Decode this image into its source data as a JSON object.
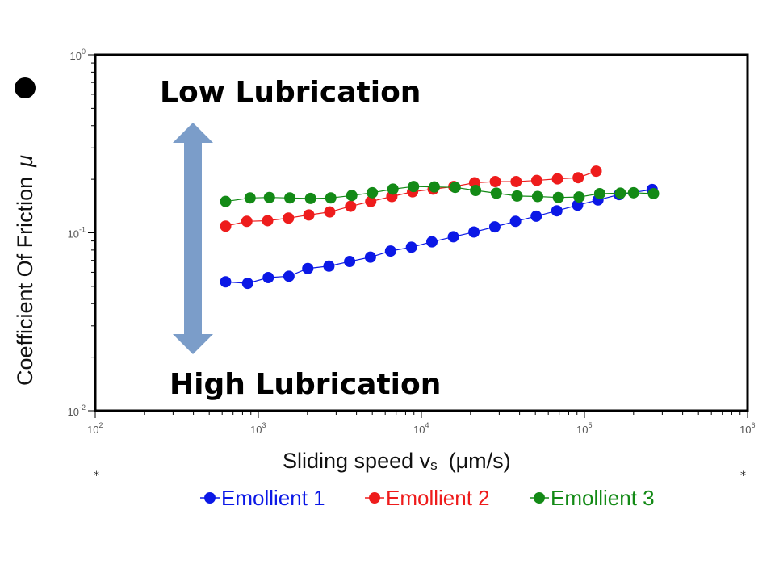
{
  "chart_data": {
    "type": "scatter",
    "x_scale": "log",
    "y_scale": "log",
    "xlim": [
      100,
      1000000
    ],
    "ylim": [
      0.01,
      1
    ],
    "x_ticks": [
      {
        "value": 100,
        "base": "10",
        "exp": "2"
      },
      {
        "value": 1000,
        "base": "10",
        "exp": "3"
      },
      {
        "value": 10000,
        "base": "10",
        "exp": "4"
      },
      {
        "value": 100000,
        "base": "10",
        "exp": "5"
      },
      {
        "value": 1000000,
        "base": "10",
        "exp": "6"
      }
    ],
    "y_ticks": [
      {
        "value": 1,
        "base": "10",
        "exp": "0"
      },
      {
        "value": 0.1,
        "base": "10",
        "exp": "-1"
      },
      {
        "value": 0.01,
        "base": "10",
        "exp": "-2"
      }
    ],
    "xlabel": "Sliding speed v",
    "xlabel_sub": "s",
    "xlabel_unit": "(μm/s)",
    "ylabel": "Coefficient Of Friction",
    "ylabel_symbol": "μ",
    "annotations": {
      "top": "Low Lubrication",
      "bottom": "High Lubrication",
      "arrow_color": "#7b9dc9"
    },
    "footnote_marks": [
      "*",
      "*"
    ],
    "series": [
      {
        "name": "Emollient 1",
        "color": "#0b18e6",
        "points": [
          [
            630,
            0.053
          ],
          [
            860,
            0.052
          ],
          [
            1150,
            0.056
          ],
          [
            1540,
            0.057
          ],
          [
            2010,
            0.063
          ],
          [
            2710,
            0.065
          ],
          [
            3630,
            0.069
          ],
          [
            4870,
            0.073
          ],
          [
            6470,
            0.079
          ],
          [
            8690,
            0.083
          ],
          [
            11600,
            0.089
          ],
          [
            15700,
            0.095
          ],
          [
            21000,
            0.101
          ],
          [
            28200,
            0.108
          ],
          [
            37800,
            0.116
          ],
          [
            50600,
            0.124
          ],
          [
            67700,
            0.133
          ],
          [
            90700,
            0.143
          ],
          [
            121000,
            0.153
          ],
          [
            163000,
            0.164
          ],
          [
            260000,
            0.175
          ]
        ]
      },
      {
        "name": "Emollient 2",
        "color": "#ee1c1c",
        "points": [
          [
            630,
            0.109
          ],
          [
            850,
            0.116
          ],
          [
            1140,
            0.117
          ],
          [
            1530,
            0.121
          ],
          [
            2040,
            0.126
          ],
          [
            2740,
            0.131
          ],
          [
            3680,
            0.141
          ],
          [
            4890,
            0.15
          ],
          [
            6590,
            0.16
          ],
          [
            8830,
            0.17
          ],
          [
            11800,
            0.176
          ],
          [
            15800,
            0.182
          ],
          [
            21200,
            0.191
          ],
          [
            28400,
            0.194
          ],
          [
            38100,
            0.194
          ],
          [
            51000,
            0.197
          ],
          [
            68300,
            0.201
          ],
          [
            91500,
            0.204
          ],
          [
            118000,
            0.222
          ]
        ]
      },
      {
        "name": "Emollient 3",
        "color": "#138a16",
        "points": [
          [
            630,
            0.15
          ],
          [
            890,
            0.157
          ],
          [
            1170,
            0.158
          ],
          [
            1560,
            0.157
          ],
          [
            2090,
            0.156
          ],
          [
            2780,
            0.157
          ],
          [
            3740,
            0.162
          ],
          [
            5000,
            0.168
          ],
          [
            6690,
            0.176
          ],
          [
            8950,
            0.182
          ],
          [
            12000,
            0.181
          ],
          [
            16100,
            0.18
          ],
          [
            21500,
            0.173
          ],
          [
            28800,
            0.167
          ],
          [
            38600,
            0.161
          ],
          [
            51600,
            0.16
          ],
          [
            69200,
            0.158
          ],
          [
            92700,
            0.159
          ],
          [
            124000,
            0.166
          ],
          [
            166000,
            0.167
          ],
          [
            200000,
            0.168
          ],
          [
            265000,
            0.166
          ]
        ]
      }
    ]
  }
}
